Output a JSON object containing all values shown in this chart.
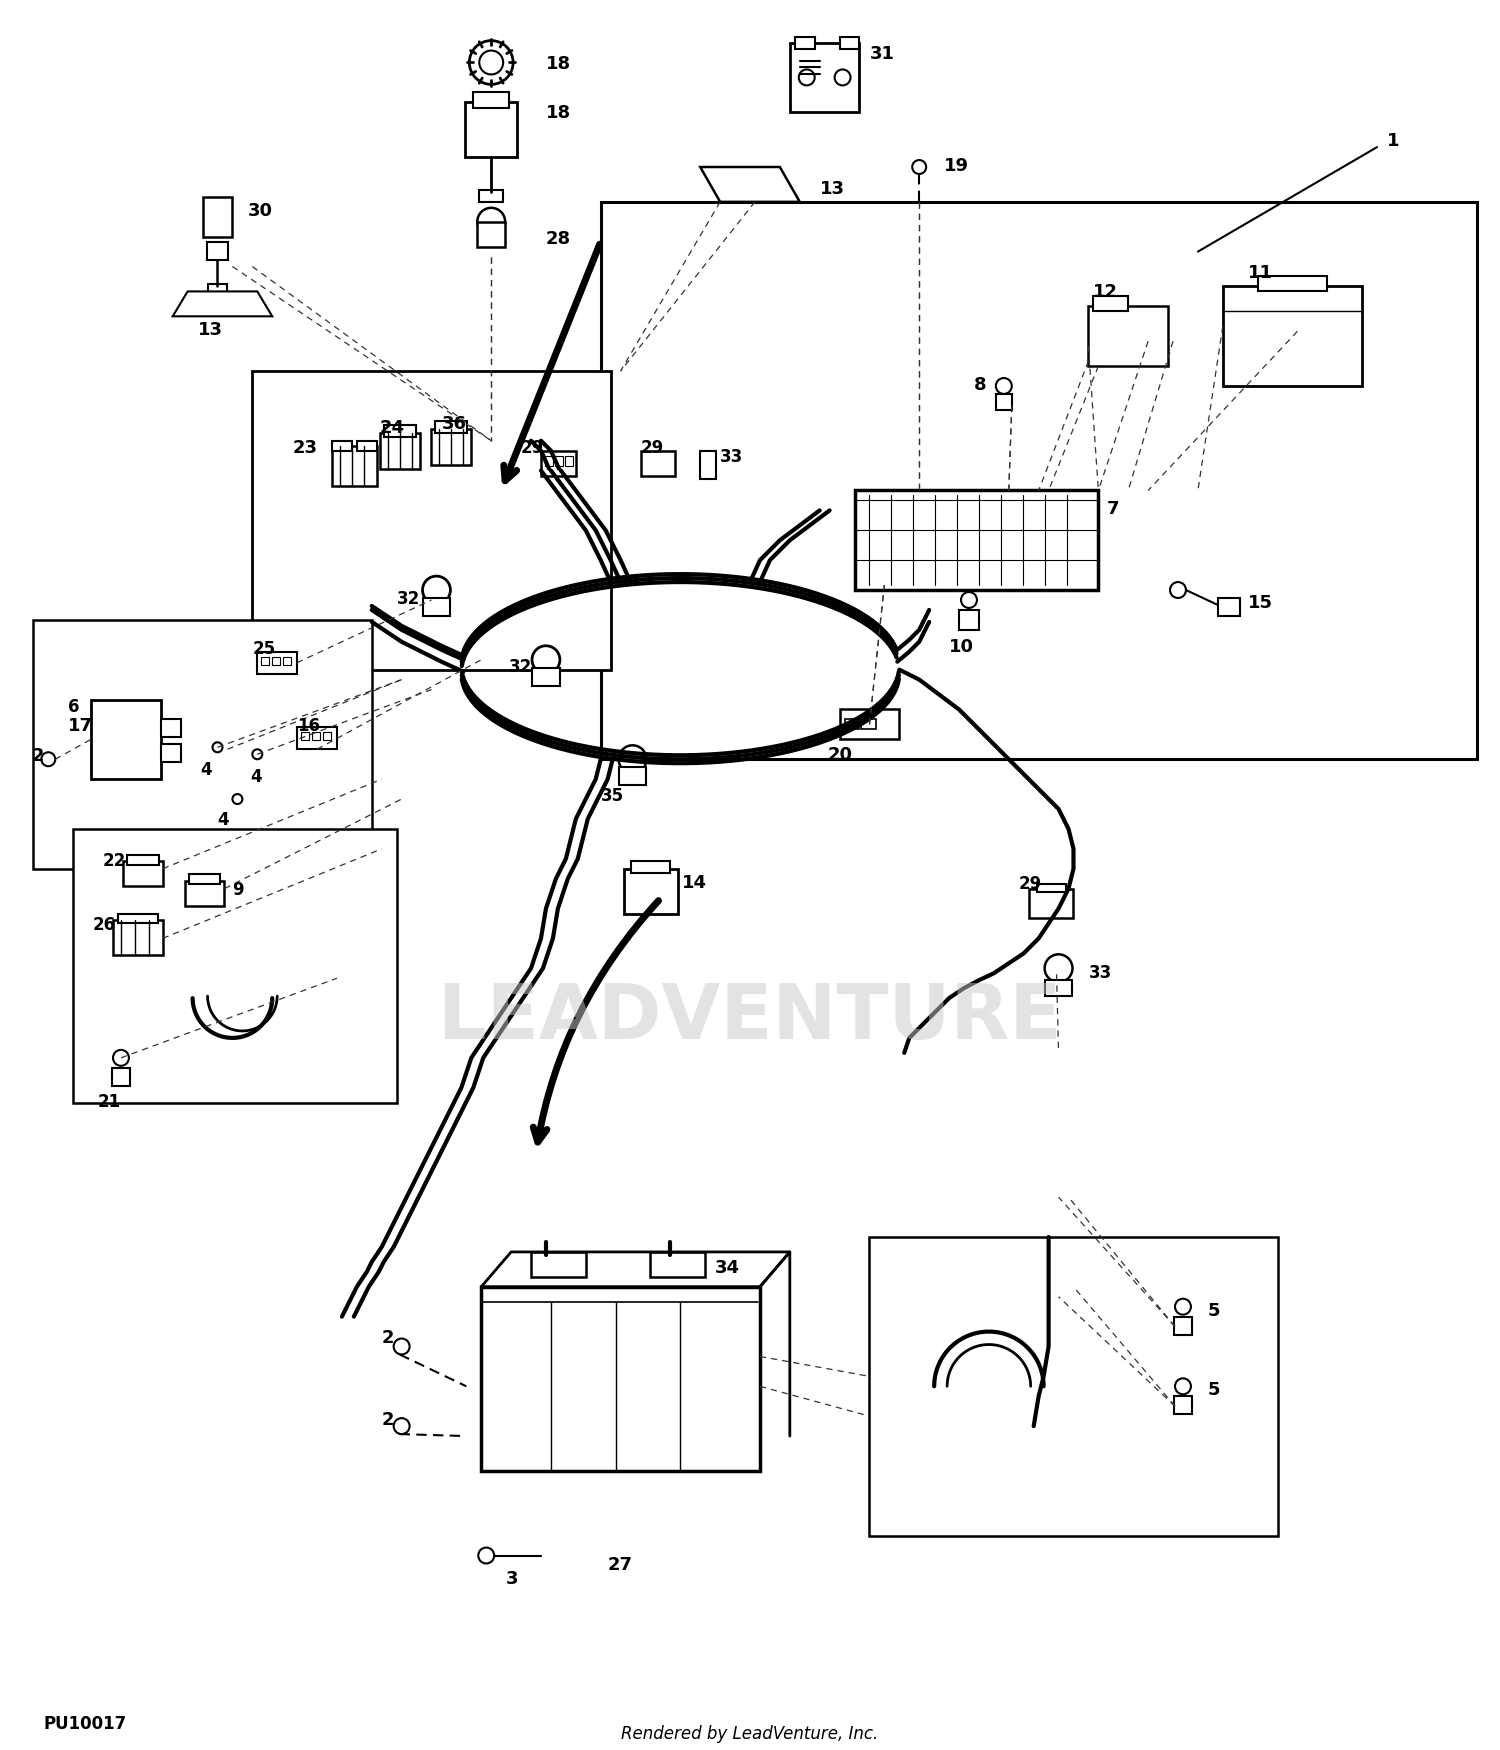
{
  "bg_color": "#ffffff",
  "fig_width": 15.0,
  "fig_height": 17.5,
  "dpi": 100,
  "bottom_left_text": "PU10017",
  "bottom_center_text": "Rendered by LeadVenture, Inc.",
  "watermark_text": "LEADVENTURE",
  "watermark_color": "#c8c8c8",
  "watermark_alpha": 0.5
}
